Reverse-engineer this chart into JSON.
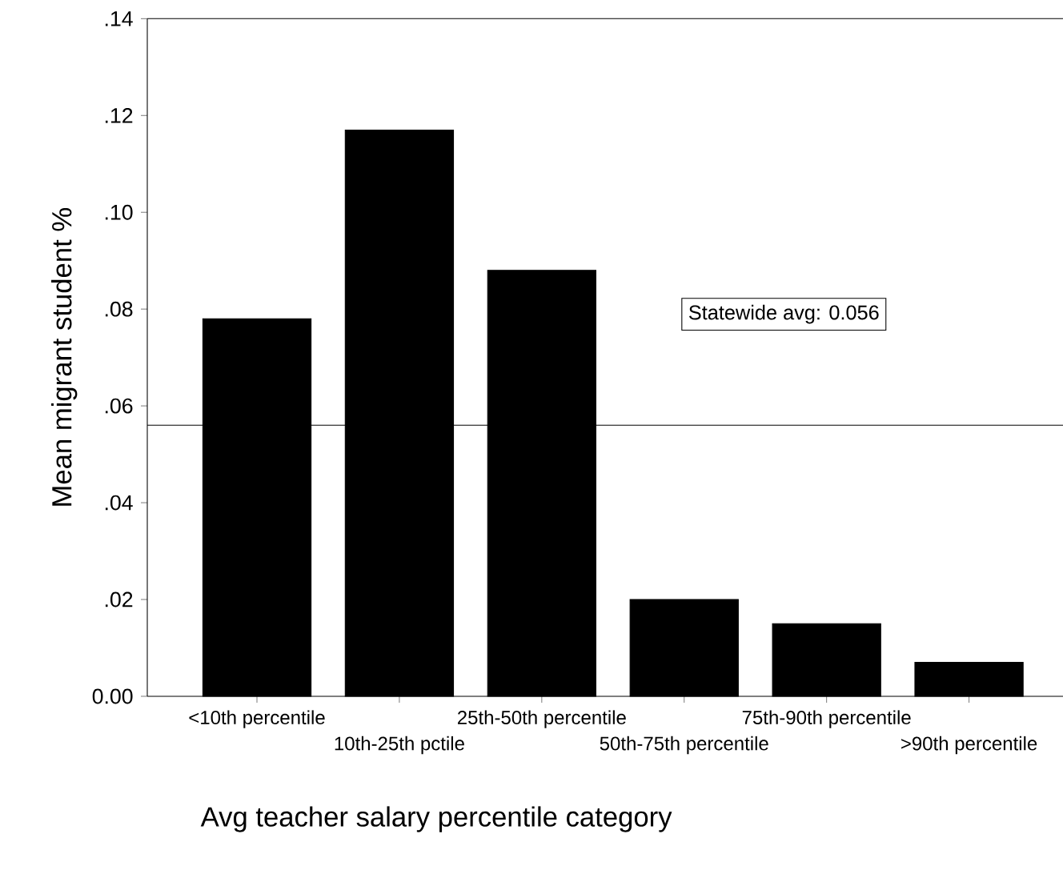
{
  "chart_data": {
    "type": "bar",
    "xlabel": "Avg teacher salary percentile category",
    "ylabel": "Mean migrant student %",
    "categories": [
      "<10th percentile",
      "10th-25th pctile",
      "25th-50th percentile",
      "50th-75th percentile",
      "75th-90th percentile",
      ">90th percentile"
    ],
    "values": [
      0.078,
      0.117,
      0.088,
      0.02,
      0.015,
      0.007
    ],
    "color": "#000000",
    "ylim": [
      0,
      0.14
    ],
    "yticks": [
      {
        "value": 0,
        "label": "0.00"
      },
      {
        "value": 0.02,
        "label": ".02"
      },
      {
        "value": 0.04,
        "label": ".04"
      },
      {
        "value": 0.06,
        "label": ".06"
      },
      {
        "value": 0.08,
        "label": ".08"
      },
      {
        "value": 0.1,
        "label": ".10"
      },
      {
        "value": 0.12,
        "label": ".12"
      },
      {
        "value": 0.14,
        "label": ".14"
      }
    ],
    "ref_lines": [
      {
        "axis": "y",
        "value": 0.056,
        "label": "Statewide avg: 0.056",
        "color": "#000000"
      }
    ]
  }
}
